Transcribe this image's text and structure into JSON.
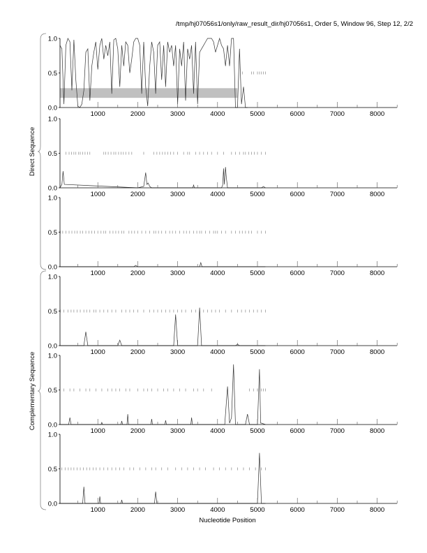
{
  "chart_data": {
    "type": "line",
    "title": "/tmp/hj07056s1/only/raw_result_dir/hj07056s1, Order 5, Window 96, Step 12, 2/2",
    "xlabel": "Nucleotide Position",
    "group_labels": [
      "Direct Sequence",
      "Complementary Sequence"
    ],
    "xlim": [
      50,
      8500
    ],
    "ylim": [
      0,
      1
    ],
    "x_ticks": [
      1000,
      2000,
      3000,
      4000,
      5000,
      6000,
      7000,
      8000
    ],
    "y_ticks": [
      "0.0",
      "0.5",
      "1.0"
    ],
    "colors": {
      "line": "#333333",
      "band": "#c0c0c0",
      "tick_marks": "#888888"
    },
    "panels": [
      {
        "group": "Direct Sequence",
        "band": {
          "x": [
            50,
            4500
          ],
          "y": [
            0.14,
            0.28
          ]
        },
        "x": [
          50,
          100,
          150,
          200,
          250,
          300,
          350,
          400,
          450,
          500,
          550,
          600,
          650,
          700,
          750,
          800,
          850,
          900,
          950,
          1000,
          1050,
          1100,
          1150,
          1200,
          1250,
          1300,
          1350,
          1400,
          1450,
          1500,
          1550,
          1600,
          1650,
          1700,
          1750,
          1800,
          1850,
          1900,
          1950,
          2000,
          2050,
          2100,
          2150,
          2200,
          2250,
          2300,
          2350,
          2400,
          2450,
          2500,
          2550,
          2600,
          2650,
          2700,
          2750,
          2800,
          2850,
          2900,
          2950,
          3000,
          3050,
          3100,
          3150,
          3200,
          3250,
          3300,
          3350,
          3400,
          3450,
          3500,
          3550,
          3600,
          3650,
          3700,
          3750,
          3800,
          3850,
          3900,
          3950,
          4000,
          4050,
          4100,
          4150,
          4200,
          4250,
          4300,
          4350,
          4400,
          4450,
          4500,
          4550,
          4600,
          4650,
          4700,
          4750
        ],
        "y": [
          0.9,
          0.85,
          0.05,
          0.9,
          1.0,
          0.95,
          0.25,
          0.98,
          0.4,
          0.02,
          0.0,
          0.05,
          0.25,
          0.8,
          0.85,
          0.1,
          0.6,
          0.8,
          0.95,
          0.55,
          0.9,
          1.0,
          0.7,
          0.9,
          0.75,
          0.95,
          0.2,
          0.98,
          1.0,
          0.85,
          0.3,
          0.9,
          0.6,
          0.95,
          0.9,
          0.5,
          0.7,
          0.95,
          1.0,
          1.0,
          0.9,
          0.2,
          0.95,
          0.3,
          0.02,
          0.6,
          0.95,
          0.8,
          0.2,
          0.9,
          0.95,
          0.4,
          0.9,
          0.3,
          0.95,
          0.8,
          0.9,
          0.6,
          0.9,
          0.05,
          0.85,
          0.6,
          0.95,
          0.1,
          0.85,
          0.7,
          0.9,
          0.2,
          0.95,
          0.05,
          0.8,
          0.85,
          0.9,
          0.95,
          1.0,
          1.0,
          1.0,
          0.95,
          0.8,
          0.9,
          1.0,
          0.9,
          0.85,
          0.6,
          0.9,
          0.6,
          1.0,
          1.0,
          0.0,
          0.0,
          0.85,
          0.05,
          0.3,
          0.0,
          0.0
        ],
        "gene_ticks": [
          4620,
          4850,
          4900,
          5000,
          5050,
          5100,
          5150,
          5200
        ]
      },
      {
        "group": "Direct Sequence",
        "x": [
          50,
          100,
          130,
          160,
          2000,
          2150,
          2200,
          2230,
          2260,
          2300,
          2350,
          3380,
          3400,
          3420,
          4100,
          4130,
          4150,
          4170,
          4200,
          4220,
          4250,
          5100,
          5150,
          5200
        ],
        "y": [
          0,
          0.05,
          0.24,
          0.05,
          0,
          0.02,
          0.22,
          0.05,
          0.07,
          0.02,
          0,
          0,
          0.04,
          0,
          0,
          0.04,
          0.28,
          0.05,
          0.3,
          0.15,
          0,
          0,
          0.02,
          0
        ],
        "gene_ticks": [
          200,
          280,
          340,
          400,
          450,
          520,
          560,
          620,
          680,
          740,
          800,
          1150,
          1200,
          1260,
          1330,
          1400,
          1450,
          1520,
          1580,
          1640,
          1700,
          1780,
          1850,
          2150,
          2400,
          2480,
          2550,
          2620,
          2680,
          2750,
          2820,
          2900,
          3000,
          3150,
          3250,
          3300,
          3450,
          3550,
          3650,
          3750,
          3850,
          4000,
          4150,
          4350,
          4450,
          4550,
          4650,
          4700,
          4780,
          4850,
          4920,
          5000,
          5100,
          5200
        ],
        "band": null
      },
      {
        "group": "Direct Sequence",
        "x": [
          50,
          1900,
          1950,
          2000,
          3550,
          3580,
          3610,
          5200
        ],
        "y": [
          0,
          0,
          0.02,
          0,
          0,
          0.06,
          0,
          0
        ],
        "gene_ticks": [
          60,
          120,
          200,
          280,
          350,
          420,
          480,
          560,
          620,
          700,
          780,
          850,
          920,
          1000,
          1080,
          1150,
          1200,
          1300,
          1380,
          1450,
          1520,
          1600,
          1650,
          1780,
          1850,
          1920,
          2000,
          2100,
          2200,
          2300,
          2400,
          2450,
          2520,
          2600,
          2700,
          2800,
          2870,
          2950,
          3050,
          3150,
          3220,
          3300,
          3400,
          3480,
          3550,
          3600,
          3700,
          3800,
          3900,
          3950,
          4000,
          4100,
          4200,
          4350,
          4450,
          4550,
          4620,
          4700,
          4780,
          4850,
          5000,
          5100,
          5200
        ],
        "band": null
      },
      {
        "group": "Complementary Sequence",
        "x": [
          50,
          650,
          700,
          750,
          1500,
          1550,
          1600,
          2900,
          2950,
          3000,
          3500,
          3550,
          3600,
          4450,
          4500,
          4550,
          5200
        ],
        "y": [
          0,
          0,
          0.2,
          0,
          0,
          0.08,
          0,
          0,
          0.45,
          0,
          0,
          0.55,
          0,
          0,
          0.02,
          0,
          0
        ],
        "gene_ticks": [
          60,
          150,
          250,
          330,
          400,
          480,
          560,
          650,
          720,
          800,
          900,
          950,
          1050,
          1150,
          1250,
          1350,
          1450,
          1600,
          1700,
          1800,
          1900,
          2000,
          2150,
          2300,
          2400,
          2500,
          2600,
          2700,
          2800,
          2900,
          3000,
          3100,
          3200,
          3350,
          3450,
          3550,
          3650,
          3750,
          3850,
          3950,
          4050,
          4200,
          4350,
          4500,
          4600,
          4700,
          4800,
          4900,
          5000,
          5100,
          5200
        ],
        "band": null
      },
      {
        "group": "Complementary Sequence",
        "x": [
          50,
          270,
          300,
          330,
          1080,
          1100,
          1120,
          1580,
          1600,
          1620,
          1730,
          1750,
          1770,
          2330,
          2350,
          2370,
          2680,
          2700,
          2720,
          3330,
          3350,
          3370,
          4180,
          4250,
          4300,
          4350,
          4400,
          4450,
          4700,
          4750,
          4800,
          5000,
          5050,
          5080,
          5100,
          5200
        ],
        "y": [
          0,
          0,
          0.1,
          0,
          0,
          0.03,
          0,
          0,
          0.05,
          0,
          0,
          0.15,
          0,
          0,
          0.08,
          0,
          0,
          0.06,
          0,
          0,
          0.1,
          0,
          0,
          0.55,
          0.02,
          0.1,
          0.87,
          0,
          0,
          0.15,
          0,
          0,
          0.8,
          0.02,
          0.02,
          0
        ],
        "gene_ticks": [
          150,
          300,
          400,
          550,
          700,
          800,
          950,
          1100,
          1250,
          1350,
          1450,
          1550,
          1700,
          1800,
          2000,
          2150,
          2250,
          2350,
          2500,
          2650,
          2750,
          2900,
          3050,
          3200,
          3400,
          3500,
          3650,
          3850,
          4800,
          4900,
          5000,
          5100,
          5150,
          5200
        ],
        "band": null
      },
      {
        "group": "Complementary Sequence",
        "x": [
          50,
          620,
          650,
          680,
          1030,
          1050,
          1070,
          1580,
          1600,
          1620,
          2420,
          2450,
          2480,
          5000,
          5050,
          5100,
          5200
        ],
        "y": [
          0,
          0,
          0.24,
          0,
          0,
          0.1,
          0,
          0,
          0.05,
          0,
          0,
          0.17,
          0,
          0,
          0.73,
          0,
          0
        ],
        "gene_ticks": [
          100,
          180,
          260,
          330,
          400,
          480,
          560,
          640,
          720,
          800,
          880,
          960,
          1050,
          1150,
          1250,
          1350,
          1450,
          1550,
          1650,
          1800,
          1900,
          2050,
          2200,
          2350,
          2450,
          2600,
          2750,
          2950,
          3100,
          3250,
          3400,
          3550,
          3700,
          3900,
          4050,
          4200,
          4350,
          4500,
          4650,
          4800,
          4950,
          5100,
          5200
        ],
        "band": null
      }
    ]
  }
}
